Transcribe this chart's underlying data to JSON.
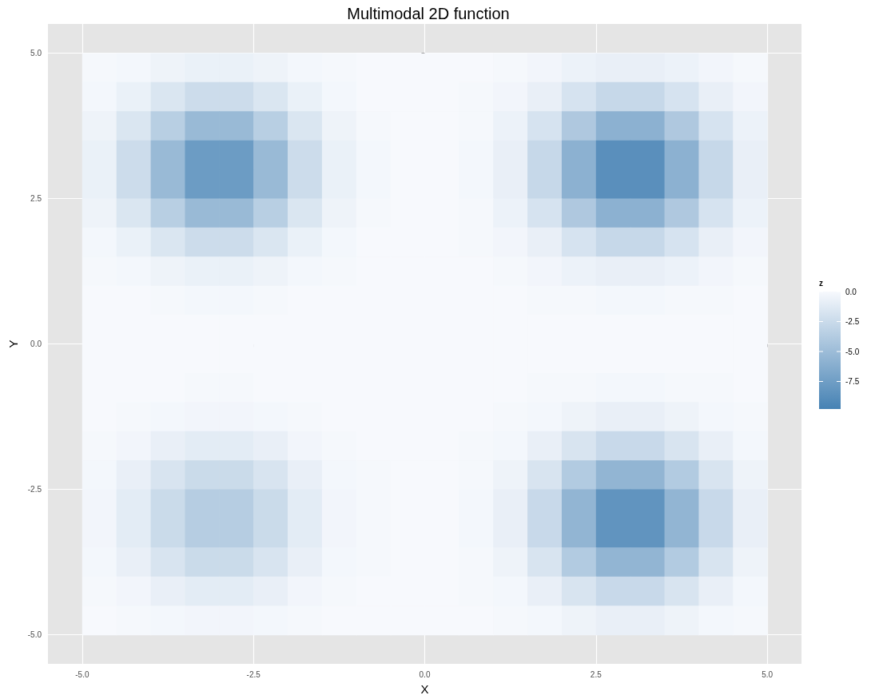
{
  "chart_data": {
    "type": "heatmap",
    "title": "Multimodal 2D function",
    "xlabel": "X",
    "ylabel": "Y",
    "clabel": "z",
    "x": [
      -4.75,
      -4.25,
      -3.75,
      -3.25,
      -2.75,
      -2.25,
      -1.75,
      -1.25,
      -0.75,
      -0.25,
      0.25,
      0.75,
      1.25,
      1.75,
      2.25,
      2.75,
      3.25,
      3.75,
      4.25,
      4.75
    ],
    "y": [
      4.75,
      4.25,
      3.75,
      3.25,
      2.75,
      2.25,
      1.75,
      1.25,
      0.75,
      0.25,
      -0.25,
      -0.75,
      -1.25,
      -1.75,
      -2.25,
      -2.75,
      -3.25,
      -3.75,
      -4.25,
      -4.75
    ],
    "cells": [
      [
        -0.1,
        -0.2,
        -0.5,
        -0.7,
        -0.7,
        -0.5,
        -0.2,
        -0.1,
        0,
        0,
        0,
        0,
        -0.1,
        -0.3,
        -0.6,
        -0.8,
        -0.8,
        -0.6,
        -0.3,
        -0.1
      ],
      [
        -0.2,
        -0.7,
        -1.6,
        -2.4,
        -2.4,
        -1.6,
        -0.7,
        -0.2,
        0,
        0,
        0,
        -0.1,
        -0.3,
        -0.8,
        -1.8,
        -2.7,
        -2.7,
        -1.8,
        -0.8,
        -0.3
      ],
      [
        -0.5,
        -1.6,
        -3.5,
        -5.2,
        -5.2,
        -3.5,
        -1.6,
        -0.5,
        -0.1,
        0,
        0,
        -0.1,
        -0.6,
        -1.8,
        -4.0,
        -5.9,
        -5.9,
        -4.0,
        -1.8,
        -0.6
      ],
      [
        -0.7,
        -2.4,
        -5.2,
        -7.7,
        -7.7,
        -5.2,
        -2.4,
        -0.7,
        -0.2,
        0,
        0,
        -0.2,
        -0.8,
        -2.7,
        -5.9,
        -8.7,
        -8.7,
        -5.9,
        -2.7,
        -0.8
      ],
      [
        -0.7,
        -2.4,
        -5.2,
        -7.7,
        -7.7,
        -5.2,
        -2.4,
        -0.7,
        -0.2,
        0,
        0,
        -0.2,
        -0.8,
        -2.7,
        -5.9,
        -8.7,
        -8.7,
        -5.9,
        -2.7,
        -0.8
      ],
      [
        -0.5,
        -1.6,
        -3.5,
        -5.2,
        -5.2,
        -3.5,
        -1.6,
        -0.5,
        -0.1,
        0,
        0,
        -0.1,
        -0.6,
        -1.8,
        -4.0,
        -5.9,
        -5.9,
        -4.0,
        -1.8,
        -0.6
      ],
      [
        -0.2,
        -0.7,
        -1.6,
        -2.4,
        -2.4,
        -1.6,
        -0.7,
        -0.2,
        0,
        0,
        0,
        -0.1,
        -0.3,
        -0.8,
        -1.8,
        -2.7,
        -2.7,
        -1.8,
        -0.8,
        -0.3
      ],
      [
        -0.1,
        -0.2,
        -0.5,
        -0.7,
        -0.7,
        -0.5,
        -0.2,
        -0.1,
        0,
        0,
        0,
        0,
        -0.1,
        -0.3,
        -0.6,
        -0.8,
        -0.8,
        -0.6,
        -0.3,
        -0.1
      ],
      [
        0,
        0,
        -0.1,
        -0.2,
        -0.2,
        -0.1,
        0,
        0,
        0,
        0,
        0,
        0,
        0,
        -0.1,
        -0.1,
        -0.2,
        -0.2,
        -0.1,
        -0.1,
        0
      ],
      [
        0,
        0,
        0,
        0,
        0,
        0,
        0,
        0,
        0,
        0,
        0,
        0,
        0,
        0,
        0,
        0,
        0,
        0,
        0,
        0
      ],
      [
        0,
        0,
        0,
        0,
        0,
        0,
        0,
        0,
        0,
        0,
        0,
        0,
        0,
        0,
        0,
        0,
        0,
        0,
        0,
        0
      ],
      [
        0,
        0,
        0,
        -0.1,
        -0.1,
        0,
        0,
        0,
        0,
        0,
        0,
        0,
        0,
        -0.1,
        -0.1,
        -0.2,
        -0.2,
        -0.1,
        -0.1,
        0
      ],
      [
        0,
        -0.1,
        -0.2,
        -0.3,
        -0.3,
        -0.2,
        -0.1,
        0,
        0,
        0,
        0,
        0,
        -0.1,
        -0.2,
        -0.5,
        -0.8,
        -0.8,
        -0.5,
        -0.2,
        -0.1
      ],
      [
        -0.1,
        -0.3,
        -0.8,
        -1.1,
        -1.1,
        -0.8,
        -0.3,
        -0.1,
        0,
        0,
        0,
        -0.1,
        -0.2,
        -0.8,
        -1.7,
        -2.6,
        -2.6,
        -1.7,
        -0.8,
        -0.2
      ],
      [
        -0.2,
        -0.8,
        -1.7,
        -2.5,
        -2.5,
        -1.7,
        -0.8,
        -0.2,
        -0.1,
        0,
        0,
        -0.1,
        -0.5,
        -1.7,
        -3.8,
        -5.6,
        -5.6,
        -3.8,
        -1.7,
        -0.5
      ],
      [
        -0.3,
        -1.1,
        -2.5,
        -3.6,
        -3.6,
        -2.5,
        -1.1,
        -0.3,
        -0.1,
        0,
        0,
        -0.2,
        -0.8,
        -2.6,
        -5.6,
        -8.3,
        -8.3,
        -5.6,
        -2.6,
        -0.8
      ],
      [
        -0.3,
        -1.1,
        -2.5,
        -3.6,
        -3.6,
        -2.5,
        -1.1,
        -0.3,
        -0.1,
        0,
        0,
        -0.2,
        -0.8,
        -2.6,
        -5.6,
        -8.3,
        -8.3,
        -5.6,
        -2.6,
        -0.8
      ],
      [
        -0.2,
        -0.8,
        -1.7,
        -2.5,
        -2.5,
        -1.7,
        -0.8,
        -0.2,
        -0.1,
        0,
        0,
        -0.1,
        -0.5,
        -1.7,
        -3.8,
        -5.6,
        -5.6,
        -3.8,
        -1.7,
        -0.5
      ],
      [
        -0.1,
        -0.3,
        -0.8,
        -1.1,
        -1.1,
        -0.8,
        -0.3,
        -0.1,
        0,
        0,
        0,
        -0.1,
        -0.2,
        -0.8,
        -1.7,
        -2.6,
        -2.6,
        -1.7,
        -0.8,
        -0.2
      ],
      [
        0,
        -0.1,
        -0.2,
        -0.3,
        -0.3,
        -0.2,
        -0.1,
        0,
        0,
        0,
        0,
        0,
        -0.1,
        -0.2,
        -0.5,
        -0.8,
        -0.8,
        -0.5,
        -0.2,
        -0.1
      ]
    ],
    "clim": [
      -9.8,
      0
    ],
    "cticks": [
      {
        "value": 0,
        "label": "0.0"
      },
      -2.5,
      {
        "value": -5,
        "label": "-5.0"
      },
      -7.5
    ],
    "xlim": [
      -5.5,
      5.5
    ],
    "xticks": [
      {
        "value": -5,
        "label": "-5.0"
      },
      -2.5,
      {
        "value": 0,
        "label": "0.0"
      },
      2.5,
      {
        "value": 5,
        "label": "5.0"
      }
    ],
    "ylim": [
      -5.5,
      5.5
    ],
    "yticks": [
      {
        "value": -5,
        "label": "-5.0"
      },
      -2.5,
      {
        "value": 0,
        "label": "0.0"
      },
      2.5,
      {
        "value": 5,
        "label": "5.0"
      }
    ],
    "grid": true
  }
}
